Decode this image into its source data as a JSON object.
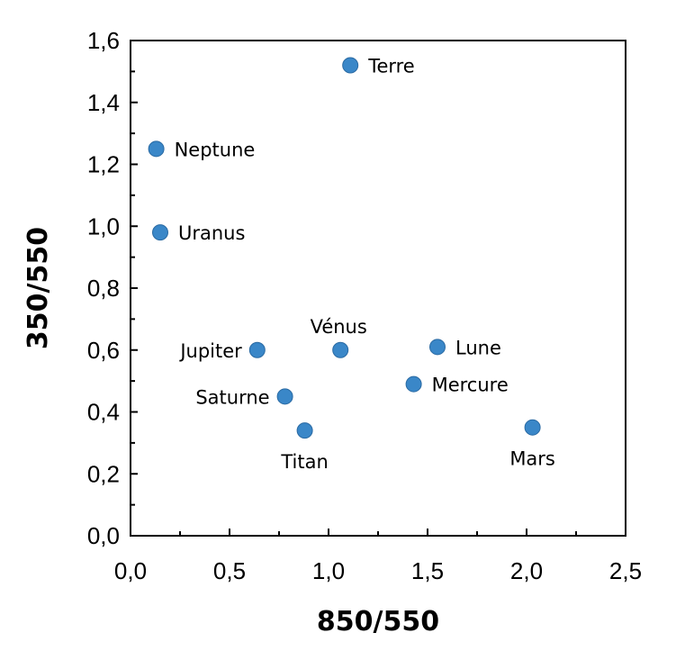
{
  "chart_data": {
    "type": "scatter",
    "xlabel": "850/550",
    "ylabel": "350/550",
    "xlim": [
      0.0,
      2.5
    ],
    "ylim": [
      0.0,
      1.6
    ],
    "x_ticks": [
      "0,0",
      "0,5",
      "1,0",
      "1,5",
      "2,0",
      "2,5"
    ],
    "y_ticks": [
      "0,0",
      "0,2",
      "0,4",
      "0,6",
      "0,8",
      "1,0",
      "1,2",
      "1,4",
      "1,6"
    ],
    "grid": false,
    "legend": "none",
    "marker_color": "#3a87c8",
    "points": [
      {
        "label": "Terre",
        "x": 1.11,
        "y": 1.52,
        "label_pos": "right"
      },
      {
        "label": "Neptune",
        "x": 0.13,
        "y": 1.25,
        "label_pos": "right"
      },
      {
        "label": "Uranus",
        "x": 0.15,
        "y": 0.98,
        "label_pos": "right"
      },
      {
        "label": "Jupiter",
        "x": 0.64,
        "y": 0.6,
        "label_pos": "left"
      },
      {
        "label": "Vénus",
        "x": 1.06,
        "y": 0.6,
        "label_pos": "above"
      },
      {
        "label": "Lune",
        "x": 1.55,
        "y": 0.61,
        "label_pos": "right"
      },
      {
        "label": "Saturne",
        "x": 0.78,
        "y": 0.45,
        "label_pos": "left"
      },
      {
        "label": "Mercure",
        "x": 1.43,
        "y": 0.49,
        "label_pos": "right"
      },
      {
        "label": "Titan",
        "x": 0.88,
        "y": 0.34,
        "label_pos": "below"
      },
      {
        "label": "Mars",
        "x": 2.03,
        "y": 0.35,
        "label_pos": "below"
      }
    ]
  }
}
